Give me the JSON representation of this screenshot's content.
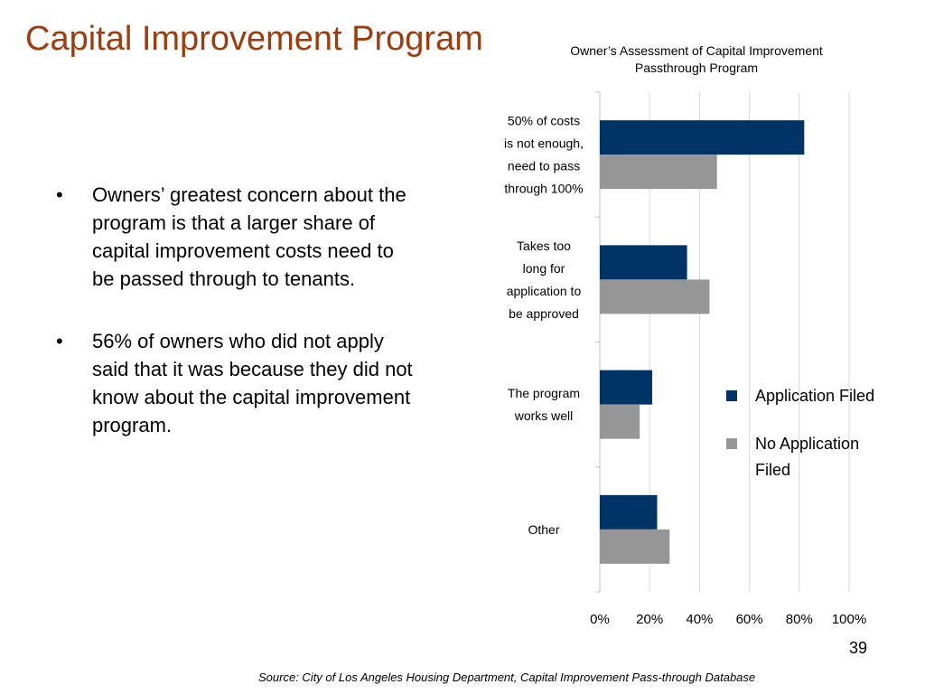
{
  "slide": {
    "title": "Capital Improvement Program",
    "bullets": [
      "Owners’ greatest concern about the program is that a larger share of capital improvement costs need to be passed through to tenants.",
      "56% of owners who did not apply said that it was because they did not know about the capital improvement program."
    ],
    "bullet_char": "•",
    "page_number": "39",
    "source": "Source: City of Los Angeles Housing Department, Capital Improvement Pass-through Database"
  },
  "chart_data": {
    "type": "bar",
    "orientation": "horizontal",
    "title": "Owner’s Assessment of Capital Improvement Passthrough Program",
    "categories": [
      [
        "50% of costs",
        "is not enough,",
        "need to pass",
        "through 100%"
      ],
      [
        "Takes too",
        "long for",
        "application to",
        "be approved"
      ],
      [
        "The program",
        "works well"
      ],
      [
        "Other"
      ]
    ],
    "series": [
      {
        "name": "Application Filed",
        "color": "#003366",
        "values": [
          82,
          35,
          21,
          23
        ]
      },
      {
        "name": "No Application Filed",
        "color": "#969696",
        "values": [
          47,
          44,
          16,
          28
        ]
      }
    ],
    "xlim": [
      0,
      100
    ],
    "x_ticks": [
      "0%",
      "20%",
      "40%",
      "60%",
      "80%",
      "100%"
    ],
    "grid": true,
    "legend_position": "right"
  }
}
